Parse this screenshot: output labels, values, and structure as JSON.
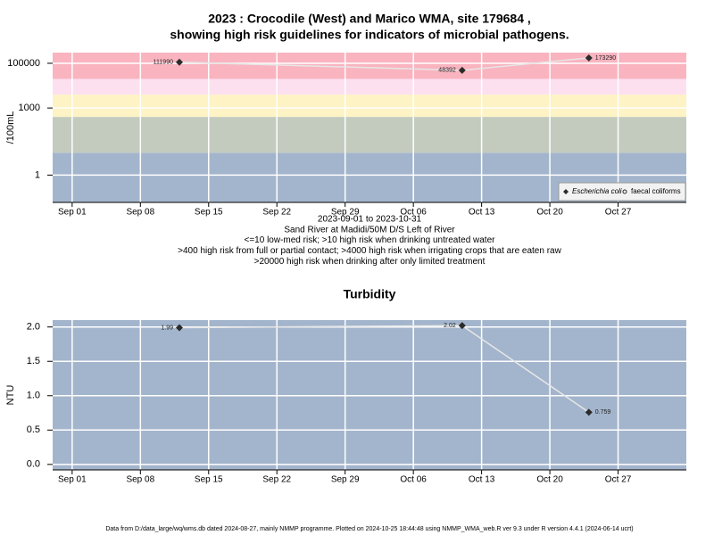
{
  "chart_data": [
    {
      "type": "line",
      "title": [
        "2023 : Crocodile (West) and Marico WMA, site 179684 ,",
        "showing high risk guidelines for indicators of microbial pathogens."
      ],
      "ylabel": "/100mL",
      "notes": [
        "2023-09-01 to 2023-10-31",
        "Sand River at Madidi/50M D/S Left of River",
        "<=10 low-med risk; >10 high risk when drinking untreated water",
        ">400 high risk from full or partial contact; >4000 high risk when irrigating crops that are eaten raw",
        ">20000 high risk when drinking after only limited treatment"
      ],
      "x": [
        "2023-09-12",
        "2023-10-11",
        "2023-10-24"
      ],
      "xlim": [
        "2023-08-30",
        "2023-11-03"
      ],
      "xticks": [
        {
          "value": "2023-09-01",
          "label": "Sep 01"
        },
        {
          "value": "2023-09-08",
          "label": "Sep 08"
        },
        {
          "value": "2023-09-15",
          "label": "Sep 15"
        },
        {
          "value": "2023-09-22",
          "label": "Sep 22"
        },
        {
          "value": "2023-09-29",
          "label": "Sep 29"
        },
        {
          "value": "2023-10-06",
          "label": "Oct 06"
        },
        {
          "value": "2023-10-13",
          "label": "Oct 13"
        },
        {
          "value": "2023-10-20",
          "label": "Oct 20"
        },
        {
          "value": "2023-10-27",
          "label": "Oct 27"
        }
      ],
      "ylim": [
        0.06,
        300000
      ],
      "ylog": true,
      "yticks": [
        1,
        1000,
        100000
      ],
      "grid": true,
      "bands": {
        "thresholds": [
          10,
          400,
          4000,
          20000
        ],
        "colors": [
          "#a3b5cc",
          "#c3cbbf",
          "#fdf3c5",
          "#fde0f0",
          "#f9b4c0"
        ]
      },
      "line_color": "#e6e6e6",
      "legend": "bottom-right",
      "series": [
        {
          "name": "Escherichia coli",
          "color": "#2b2b2b",
          "marker": "diamond",
          "values": [
            111990,
            48392,
            173290
          ]
        },
        {
          "name": "faecal coliforms",
          "color": "#2b2b2b",
          "marker": "circle-open",
          "values": [
            null,
            null,
            null
          ]
        }
      ]
    },
    {
      "type": "line",
      "title": "Turbidity",
      "ylabel": "NTU",
      "x": [
        "2023-09-12",
        "2023-10-11",
        "2023-10-24"
      ],
      "xlim": [
        "2023-08-30",
        "2023-11-03"
      ],
      "xticks": [
        {
          "value": "2023-09-01",
          "label": "Sep 01"
        },
        {
          "value": "2023-09-08",
          "label": "Sep 08"
        },
        {
          "value": "2023-09-15",
          "label": "Sep 15"
        },
        {
          "value": "2023-09-22",
          "label": "Sep 22"
        },
        {
          "value": "2023-09-29",
          "label": "Sep 29"
        },
        {
          "value": "2023-10-06",
          "label": "Oct 06"
        },
        {
          "value": "2023-10-13",
          "label": "Oct 13"
        },
        {
          "value": "2023-10-20",
          "label": "Oct 20"
        },
        {
          "value": "2023-10-27",
          "label": "Oct 27"
        }
      ],
      "ylim": [
        -0.08,
        2.1
      ],
      "yticks": [
        {
          "value": 0,
          "label": "0.0"
        },
        {
          "value": 0.5,
          "label": "0.5"
        },
        {
          "value": 1,
          "label": "1.0"
        },
        {
          "value": 1.5,
          "label": "1.5"
        },
        {
          "value": 2,
          "label": "2.0"
        }
      ],
      "grid": true,
      "background": "#a3b5cc",
      "line_color": "#e6e6e6",
      "color": "#2b2b2b",
      "values": [
        1.99,
        2.02,
        0.759
      ]
    }
  ],
  "footer": "Data from D:/data_large/wq/wms.db dated 2024-08-27, mainly NMMP programme. Plotted on 2024-10-25 18:44:48 using NMMP_WMA_web.R ver 9.3 under R version 4.4.1 (2024-06-14 ucrt)"
}
